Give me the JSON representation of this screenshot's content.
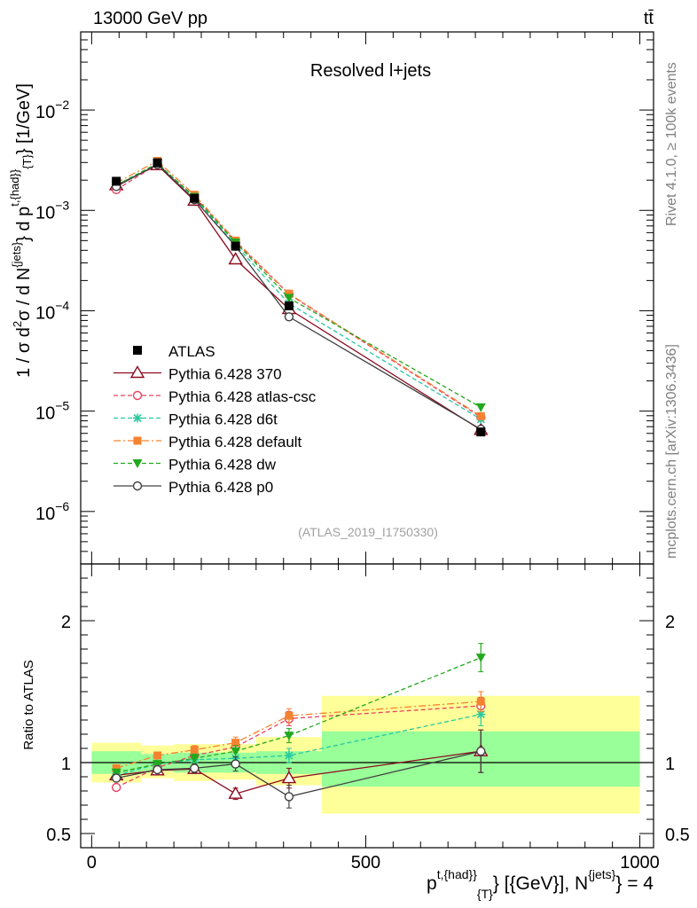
{
  "header": {
    "energy_label": "13000 GeV pp",
    "process_label": "tt̄"
  },
  "side_labels": {
    "rivet": "Rivet 4.1.0, ≥ 100k events",
    "mcplots": "mcplots.cern.ch [arXiv:1306.3436]"
  },
  "watermark": "(ATLAS_2019_I1750330)",
  "chart_data": [
    {
      "type": "line",
      "panel": "main",
      "title": "Resolved l+jets",
      "yscale": "log",
      "ylim": [
        3e-07,
        0.06
      ],
      "xlim": [
        -20,
        1025
      ],
      "ylabel_parts": [
        "1 / σ d",
        "2",
        "σ / d N",
        "{jets}",
        "} d p",
        "t,{had}",
        "}",
        "{T}",
        "} [1/GeV]"
      ],
      "ytick_labels": [
        {
          "value": 0.01,
          "base": "10",
          "exp": "−2"
        },
        {
          "value": 0.001,
          "base": "10",
          "exp": "−3"
        },
        {
          "value": 0.0001,
          "base": "10",
          "exp": "−4"
        },
        {
          "value": 1e-05,
          "base": "10",
          "exp": "−5"
        },
        {
          "value": 1e-06,
          "base": "10",
          "exp": "−6"
        }
      ],
      "data": {
        "name": "ATLAS",
        "x": [
          45,
          120,
          187.5,
          262.5,
          360,
          710
        ],
        "y": [
          0.00195,
          0.00298,
          0.00132,
          0.00044,
          0.000112,
          6.2e-06
        ],
        "color": "#000000"
      },
      "series": [
        {
          "name": "Pythia 6.428 370",
          "color": "#8b0a1e",
          "marker": "triangle-open",
          "dash": "solid",
          "y": [
            0.00178,
            0.00282,
            0.00125,
            0.000325,
            0.000104,
            6.5e-06
          ]
        },
        {
          "name": "Pythia 6.428 atlas-csc",
          "color": "#e8425f",
          "marker": "circle-open",
          "dash": "dashed",
          "y": [
            0.00161,
            0.00287,
            0.00138,
            0.000487,
            0.000146,
            8.7e-06
          ]
        },
        {
          "name": "Pythia 6.428 d6t",
          "color": "#27c9a0",
          "marker": "star",
          "dash": "dashed",
          "y": [
            0.00178,
            0.00294,
            0.00134,
            0.000451,
            0.000118,
            8.3e-06
          ]
        },
        {
          "name": "Pythia 6.428 default",
          "color": "#f58231",
          "marker": "square-filled",
          "dash": "dashdot",
          "y": [
            0.00188,
            0.00311,
            0.00143,
            0.0005,
            0.000148,
            8.9e-06
          ]
        },
        {
          "name": "Pythia 6.428 dw",
          "color": "#22a81e",
          "marker": "triangle-down-filled",
          "dash": "dashed",
          "y": [
            0.00178,
            0.00294,
            0.00136,
            0.000478,
            0.000134,
            1.09e-05
          ]
        },
        {
          "name": "Pythia 6.428 p0",
          "color": "#404040",
          "marker": "circle-open",
          "dash": "solid",
          "y": [
            0.00173,
            0.00287,
            0.00128,
            0.00044,
            8.7e-05,
            6.6e-06
          ]
        }
      ]
    },
    {
      "type": "line",
      "panel": "ratio",
      "ylabel": "Ratio to ATLAS",
      "ylim": [
        0.4,
        2.4
      ],
      "ytick_labels": [
        {
          "value": 2,
          "label": "2"
        },
        {
          "value": 1,
          "label": "1"
        },
        {
          "value": 0.5,
          "label": "0.5"
        }
      ],
      "xlabel_parts": [
        "p",
        "t,{had}",
        "}",
        "{T}",
        "} [{GeV}], N",
        "{jets}",
        "} = 4"
      ],
      "xticks": [
        0,
        500,
        1000
      ],
      "xtick_labels": [
        "0",
        "500",
        "1000"
      ],
      "bins": [
        [
          0,
          90
        ],
        [
          90,
          150
        ],
        [
          150,
          225
        ],
        [
          225,
          300
        ],
        [
          300,
          420
        ],
        [
          420,
          1000
        ]
      ],
      "band_inner": [
        [
          0.92,
          1.08
        ],
        [
          0.94,
          1.06
        ],
        [
          0.93,
          1.07
        ],
        [
          0.93,
          1.07
        ],
        [
          0.92,
          1.08
        ],
        [
          0.83,
          1.22
        ]
      ],
      "band_outer": [
        [
          0.86,
          1.14
        ],
        [
          0.89,
          1.12
        ],
        [
          0.87,
          1.13
        ],
        [
          0.88,
          1.13
        ],
        [
          0.84,
          1.18
        ],
        [
          0.64,
          1.47
        ]
      ],
      "x": [
        45,
        120,
        187.5,
        262.5,
        360,
        710
      ],
      "series": [
        {
          "name": "Pythia 6.428 370",
          "y": [
            0.91,
            0.945,
            0.955,
            0.78,
            0.89,
            1.08
          ],
          "err": [
            0.03,
            0.02,
            0.03,
            0.04,
            0.07,
            0.15
          ]
        },
        {
          "name": "Pythia 6.428 atlas-csc",
          "y": [
            0.825,
            0.965,
            1.05,
            1.11,
            1.31,
            1.4
          ],
          "err": [
            0.02,
            0.02,
            0.03,
            0.04,
            0.05,
            0.06
          ]
        },
        {
          "name": "Pythia 6.428 d6t",
          "y": [
            0.91,
            0.99,
            1.02,
            1.03,
            1.05,
            1.34
          ],
          "err": [
            0.02,
            0.02,
            0.03,
            0.04,
            0.05,
            0.08
          ]
        },
        {
          "name": "Pythia 6.428 default",
          "y": [
            0.96,
            1.05,
            1.09,
            1.14,
            1.33,
            1.43
          ],
          "err": [
            0.02,
            0.02,
            0.03,
            0.04,
            0.05,
            0.07
          ]
        },
        {
          "name": "Pythia 6.428 dw",
          "y": [
            0.93,
            0.99,
            1.03,
            1.08,
            1.19,
            1.74
          ],
          "err": [
            0.02,
            0.02,
            0.03,
            0.04,
            0.05,
            0.1
          ]
        },
        {
          "name": "Pythia 6.428 p0",
          "y": [
            0.89,
            0.95,
            0.96,
            0.99,
            0.76,
            1.08
          ],
          "err": [
            0.02,
            0.02,
            0.03,
            0.05,
            0.08,
            0.15
          ]
        }
      ]
    }
  ]
}
